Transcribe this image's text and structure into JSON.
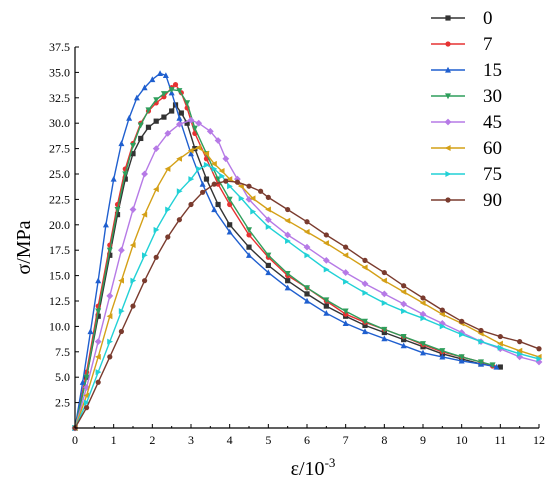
{
  "chart_data": {
    "type": "line",
    "title": "",
    "xlabel": "ε/10",
    "xlabel_exp": "-3",
    "ylabel": "σ/MPa",
    "xlim": [
      0,
      12
    ],
    "ylim": [
      0,
      37.5
    ],
    "x_ticks": [
      0,
      1,
      2,
      3,
      4,
      5,
      6,
      7,
      8,
      9,
      10,
      11,
      12
    ],
    "x_tick_labels": [
      "0",
      "1",
      "2",
      "3",
      "4",
      "5",
      "6",
      "7",
      "8",
      "9",
      "10",
      "11",
      "12"
    ],
    "y_ticks": [
      2.5,
      5,
      7.5,
      10,
      12.5,
      15,
      17.5,
      20,
      22.5,
      25,
      27.5,
      30,
      32.5,
      35,
      37.5
    ],
    "y_tick_labels": [
      "2.5",
      "5.0",
      "7.5",
      "10.0",
      "12.5",
      "15.0",
      "17.5",
      "20.0",
      "22.5",
      "25.0",
      "27.5",
      "30.0",
      "32.5",
      "35.0",
      "37.5"
    ],
    "grid": false,
    "legend_position": "top-right outside",
    "series": [
      {
        "name": "0",
        "color": "#333333",
        "marker": "square",
        "points": [
          [
            0,
            0
          ],
          [
            0.3,
            5
          ],
          [
            0.6,
            11
          ],
          [
            0.9,
            17
          ],
          [
            1.1,
            21
          ],
          [
            1.3,
            24.5
          ],
          [
            1.5,
            27
          ],
          [
            1.7,
            28.5
          ],
          [
            1.9,
            29.6
          ],
          [
            2.1,
            30.2
          ],
          [
            2.3,
            30.6
          ],
          [
            2.5,
            31.2
          ],
          [
            2.6,
            31.8
          ],
          [
            2.75,
            31
          ],
          [
            2.9,
            30
          ],
          [
            3.1,
            27.5
          ],
          [
            3.4,
            24.5
          ],
          [
            3.7,
            22
          ],
          [
            4,
            20
          ],
          [
            4.5,
            17.8
          ],
          [
            5,
            16
          ],
          [
            5.5,
            14.5
          ],
          [
            6,
            13.2
          ],
          [
            6.5,
            12
          ],
          [
            7,
            11
          ],
          [
            7.5,
            10.1
          ],
          [
            8,
            9.4
          ],
          [
            8.5,
            8.7
          ],
          [
            9,
            8
          ],
          [
            9.5,
            7.3
          ],
          [
            10,
            6.8
          ],
          [
            10.5,
            6.3
          ],
          [
            11,
            6
          ]
        ]
      },
      {
        "name": "7",
        "color": "#e63232",
        "marker": "circle",
        "points": [
          [
            0,
            0
          ],
          [
            0.3,
            5.5
          ],
          [
            0.6,
            12
          ],
          [
            0.9,
            18
          ],
          [
            1.1,
            22
          ],
          [
            1.3,
            25.5
          ],
          [
            1.5,
            28
          ],
          [
            1.7,
            30
          ],
          [
            1.9,
            31.2
          ],
          [
            2.1,
            32
          ],
          [
            2.3,
            32.6
          ],
          [
            2.5,
            33.5
          ],
          [
            2.6,
            33.8
          ],
          [
            2.75,
            33
          ],
          [
            2.9,
            31.5
          ],
          [
            3.1,
            29
          ],
          [
            3.4,
            26.5
          ],
          [
            3.7,
            24
          ],
          [
            4,
            22
          ],
          [
            4.5,
            19
          ],
          [
            5,
            16.8
          ],
          [
            5.5,
            15
          ],
          [
            6,
            13.8
          ],
          [
            6.5,
            12.5
          ],
          [
            7,
            11.2
          ],
          [
            7.5,
            10.4
          ],
          [
            8,
            9.7
          ],
          [
            8.5,
            9
          ],
          [
            9,
            8.2
          ],
          [
            9.5,
            7.5
          ],
          [
            10,
            7
          ],
          [
            10.5,
            6.5
          ],
          [
            10.8,
            6.1
          ]
        ]
      },
      {
        "name": "15",
        "color": "#1f5fcf",
        "marker": "triangle",
        "points": [
          [
            0,
            0
          ],
          [
            0.2,
            4.5
          ],
          [
            0.4,
            9.5
          ],
          [
            0.6,
            14.5
          ],
          [
            0.8,
            20
          ],
          [
            1,
            24.5
          ],
          [
            1.2,
            28
          ],
          [
            1.4,
            30.5
          ],
          [
            1.6,
            32.5
          ],
          [
            1.8,
            33.5
          ],
          [
            2,
            34.3
          ],
          [
            2.2,
            34.9
          ],
          [
            2.35,
            34.7
          ],
          [
            2.5,
            33
          ],
          [
            2.7,
            30.5
          ],
          [
            3,
            27
          ],
          [
            3.3,
            24
          ],
          [
            3.6,
            21.5
          ],
          [
            4,
            19.3
          ],
          [
            4.5,
            17
          ],
          [
            5,
            15.3
          ],
          [
            5.5,
            13.8
          ],
          [
            6,
            12.5
          ],
          [
            6.5,
            11.3
          ],
          [
            7,
            10.3
          ],
          [
            7.5,
            9.5
          ],
          [
            8,
            8.8
          ],
          [
            8.5,
            8.1
          ],
          [
            9,
            7.4
          ],
          [
            9.5,
            7
          ],
          [
            10,
            6.6
          ],
          [
            10.5,
            6.3
          ],
          [
            10.9,
            6
          ]
        ]
      },
      {
        "name": "30",
        "color": "#2e9e5b",
        "marker": "triangle-down",
        "points": [
          [
            0,
            0
          ],
          [
            0.3,
            5
          ],
          [
            0.6,
            11.5
          ],
          [
            0.9,
            17.5
          ],
          [
            1.1,
            21.5
          ],
          [
            1.3,
            25
          ],
          [
            1.5,
            27.8
          ],
          [
            1.7,
            29.8
          ],
          [
            1.9,
            31.3
          ],
          [
            2.1,
            32.3
          ],
          [
            2.3,
            32.9
          ],
          [
            2.5,
            33.3
          ],
          [
            2.7,
            33.2
          ],
          [
            2.9,
            32
          ],
          [
            3.1,
            29.5
          ],
          [
            3.4,
            27
          ],
          [
            3.7,
            24.5
          ],
          [
            4,
            22.5
          ],
          [
            4.5,
            19.5
          ],
          [
            5,
            17
          ],
          [
            5.5,
            15.2
          ],
          [
            6,
            13.8
          ],
          [
            6.5,
            12.6
          ],
          [
            7,
            11.5
          ],
          [
            7.5,
            10.5
          ],
          [
            8,
            9.7
          ],
          [
            8.5,
            9
          ],
          [
            9,
            8.3
          ],
          [
            9.5,
            7.6
          ],
          [
            10,
            7
          ],
          [
            10.5,
            6.5
          ],
          [
            10.8,
            6.2
          ]
        ]
      },
      {
        "name": "45",
        "color": "#b67ae6",
        "marker": "diamond",
        "points": [
          [
            0,
            0
          ],
          [
            0.3,
            4
          ],
          [
            0.6,
            8.5
          ],
          [
            0.9,
            13
          ],
          [
            1.2,
            17.5
          ],
          [
            1.5,
            21.5
          ],
          [
            1.8,
            25
          ],
          [
            2.1,
            27.5
          ],
          [
            2.4,
            29
          ],
          [
            2.7,
            29.9
          ],
          [
            3,
            30.3
          ],
          [
            3.2,
            30
          ],
          [
            3.5,
            29.2
          ],
          [
            3.7,
            28.3
          ],
          [
            3.9,
            26.5
          ],
          [
            4.2,
            24.5
          ],
          [
            4.5,
            22.5
          ],
          [
            5,
            20.5
          ],
          [
            5.5,
            19
          ],
          [
            6,
            17.8
          ],
          [
            6.5,
            16.5
          ],
          [
            7,
            15.3
          ],
          [
            7.5,
            14.2
          ],
          [
            8,
            13.2
          ],
          [
            8.5,
            12.2
          ],
          [
            9,
            11.2
          ],
          [
            9.5,
            10.3
          ],
          [
            10,
            9.4
          ],
          [
            10.5,
            8.5
          ],
          [
            11,
            7.8
          ],
          [
            11.5,
            7
          ],
          [
            12,
            6.5
          ]
        ]
      },
      {
        "name": "60",
        "color": "#d4a017",
        "marker": "triangle-left",
        "points": [
          [
            0,
            0
          ],
          [
            0.3,
            3.2
          ],
          [
            0.6,
            7
          ],
          [
            0.9,
            11
          ],
          [
            1.2,
            14.5
          ],
          [
            1.5,
            18
          ],
          [
            1.8,
            21
          ],
          [
            2.1,
            23.5
          ],
          [
            2.4,
            25.5
          ],
          [
            2.7,
            26.5
          ],
          [
            3,
            27.3
          ],
          [
            3.2,
            27.6
          ],
          [
            3.4,
            27
          ],
          [
            3.6,
            26
          ],
          [
            3.8,
            25.3
          ],
          [
            4,
            24.5
          ],
          [
            4.3,
            23.8
          ],
          [
            4.6,
            22.6
          ],
          [
            5,
            21.5
          ],
          [
            5.5,
            20.4
          ],
          [
            6,
            19.3
          ],
          [
            6.5,
            18.2
          ],
          [
            7,
            17
          ],
          [
            7.5,
            15.8
          ],
          [
            8,
            14.5
          ],
          [
            8.5,
            13.4
          ],
          [
            9,
            12.3
          ],
          [
            9.5,
            11.2
          ],
          [
            10,
            10.3
          ],
          [
            10.5,
            9.3
          ],
          [
            11,
            8.3
          ],
          [
            11.5,
            7.6
          ],
          [
            12,
            7
          ]
        ]
      },
      {
        "name": "75",
        "color": "#21d1d6",
        "marker": "triangle-right",
        "points": [
          [
            0,
            0
          ],
          [
            0.3,
            2.5
          ],
          [
            0.6,
            5.5
          ],
          [
            0.9,
            8.5
          ],
          [
            1.2,
            11.5
          ],
          [
            1.5,
            14.5
          ],
          [
            1.8,
            17
          ],
          [
            2.1,
            19.5
          ],
          [
            2.4,
            21.5
          ],
          [
            2.7,
            23.3
          ],
          [
            3,
            24.5
          ],
          [
            3.2,
            25.5
          ],
          [
            3.4,
            25.9
          ],
          [
            3.6,
            25.5
          ],
          [
            3.8,
            24.8
          ],
          [
            4,
            23.8
          ],
          [
            4.3,
            22.6
          ],
          [
            4.6,
            21.3
          ],
          [
            5,
            19.8
          ],
          [
            5.5,
            18.4
          ],
          [
            6,
            17
          ],
          [
            6.5,
            15.6
          ],
          [
            7,
            14.4
          ],
          [
            7.5,
            13.3
          ],
          [
            8,
            12.3
          ],
          [
            8.5,
            11.5
          ],
          [
            9,
            10.8
          ],
          [
            9.5,
            10
          ],
          [
            10,
            9.2
          ],
          [
            10.5,
            8.5
          ],
          [
            11,
            7.9
          ],
          [
            11.5,
            7.3
          ],
          [
            12,
            6.8
          ]
        ]
      },
      {
        "name": "90",
        "color": "#7a3b2e",
        "marker": "circle",
        "points": [
          [
            0,
            0
          ],
          [
            0.3,
            2
          ],
          [
            0.6,
            4.5
          ],
          [
            0.9,
            7
          ],
          [
            1.2,
            9.5
          ],
          [
            1.5,
            12
          ],
          [
            1.8,
            14.5
          ],
          [
            2.1,
            16.8
          ],
          [
            2.4,
            18.8
          ],
          [
            2.7,
            20.5
          ],
          [
            3,
            22
          ],
          [
            3.3,
            23.2
          ],
          [
            3.6,
            24
          ],
          [
            3.9,
            24.3
          ],
          [
            4.2,
            24.2
          ],
          [
            4.5,
            23.8
          ],
          [
            4.8,
            23.3
          ],
          [
            5,
            22.7
          ],
          [
            5.5,
            21.5
          ],
          [
            6,
            20.3
          ],
          [
            6.5,
            19
          ],
          [
            7,
            17.8
          ],
          [
            7.5,
            16.5
          ],
          [
            8,
            15.3
          ],
          [
            8.5,
            14
          ],
          [
            9,
            12.8
          ],
          [
            9.5,
            11.6
          ],
          [
            10,
            10.5
          ],
          [
            10.5,
            9.6
          ],
          [
            11,
            9
          ],
          [
            11.5,
            8.5
          ],
          [
            12,
            7.8
          ]
        ]
      }
    ]
  }
}
